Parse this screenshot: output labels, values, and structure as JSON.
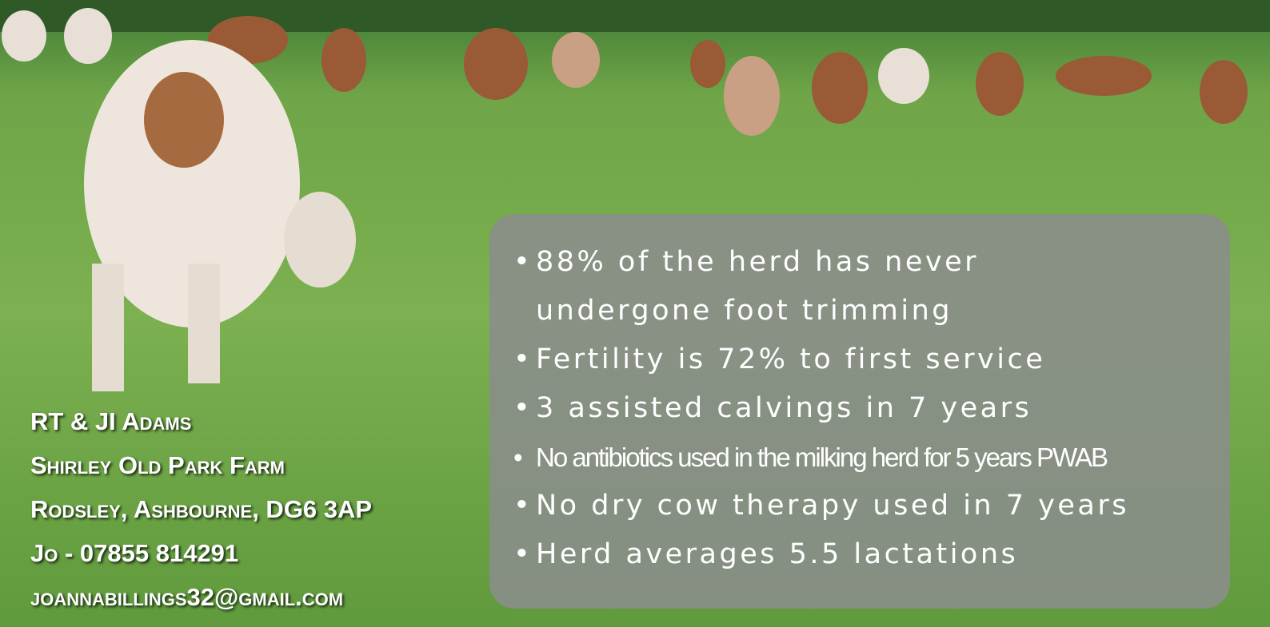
{
  "contact": {
    "lines": [
      "RT & JI Adams",
      "Shirley Old Park Farm",
      "Rodsley, Ashbourne, DG6 3AP",
      "Jo - 07855 814291",
      "joannabillings32@gmail.com"
    ]
  },
  "facts": {
    "items": [
      "88% of the herd has never undergone foot trimming",
      "Fertility is 72% to first service",
      "3 assisted calvings in 7 years",
      "No antibiotics used in the milking herd for 5 years PWAB",
      "No dry cow therapy used in 7 years",
      "Herd averages 5.5 lactations"
    ]
  }
}
